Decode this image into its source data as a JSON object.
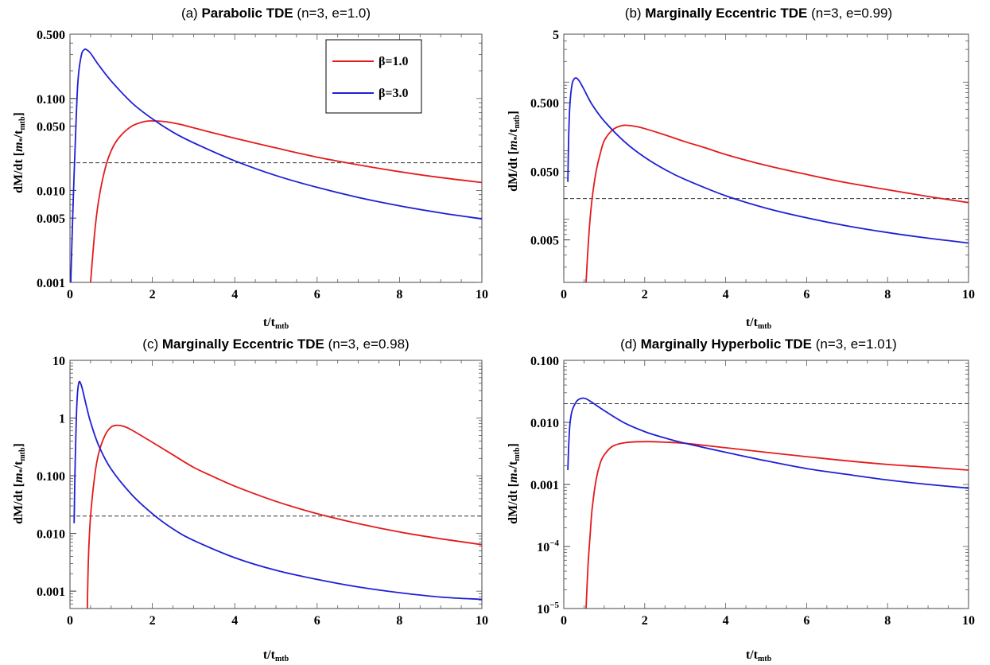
{
  "figure": {
    "legend": {
      "placement": "top-right of panel (a)",
      "entries": [
        {
          "label": "β=1.0",
          "color": "#e41a1c"
        },
        {
          "label": "β=3.0",
          "color": "#1f1fd6"
        }
      ]
    }
  },
  "chart_data": [
    {
      "type": "line",
      "title": "(a) Parabolic TDE (n=3, e=1.0)",
      "title_bold": "Parabolic TDE",
      "title_prefix": "(a) ",
      "title_suffix": " (n=3, e=1.0)",
      "xlabel": "t/t",
      "xlabel_sub": "mtb",
      "ylabel": "dM/dt [",
      "ylabel_unit": "m",
      "ylabel_unit_sub": "*",
      "ylabel_den": "/t",
      "ylabel_den_sub": "mtb",
      "ylabel_close": "]",
      "xlim": [
        0,
        10
      ],
      "ylim": [
        0.001,
        0.5
      ],
      "yscale": "log",
      "xticks": [
        0,
        2,
        4,
        6,
        8,
        10
      ],
      "xtick_labels": [
        "0",
        "2",
        "4",
        "6",
        "8",
        "10"
      ],
      "yticks": [
        0.001,
        0.005,
        0.01,
        0.05,
        0.1,
        0.5
      ],
      "ytick_labels": [
        "0.001",
        "0.005",
        "0.010",
        "0.050",
        "0.100",
        "0.500"
      ],
      "hline": 0.02,
      "series": [
        {
          "name": "β=1.0",
          "color": "#e41a1c",
          "x": [
            0.5,
            0.6,
            0.7,
            0.85,
            1.0,
            1.2,
            1.5,
            1.8,
            2.0,
            2.3,
            2.7,
            3.0,
            3.5,
            4.0,
            5.0,
            6.0,
            7.0,
            8.0,
            9.0,
            10.0
          ],
          "y": [
            0.001,
            0.0035,
            0.008,
            0.017,
            0.027,
            0.038,
            0.05,
            0.056,
            0.057,
            0.056,
            0.052,
            0.048,
            0.042,
            0.037,
            0.029,
            0.023,
            0.019,
            0.016,
            0.0138,
            0.0122
          ]
        },
        {
          "name": "β=3.0",
          "color": "#1f1fd6",
          "x": [
            0.02,
            0.05,
            0.1,
            0.15,
            0.2,
            0.28,
            0.35,
            0.4,
            0.5,
            0.7,
            1.0,
            1.5,
            2.0,
            2.5,
            3.0,
            4.0,
            5.0,
            6.0,
            7.0,
            8.0,
            9.0,
            10.0
          ],
          "y": [
            0.001,
            0.003,
            0.015,
            0.06,
            0.17,
            0.3,
            0.34,
            0.34,
            0.31,
            0.23,
            0.155,
            0.09,
            0.06,
            0.043,
            0.033,
            0.021,
            0.0145,
            0.0108,
            0.0084,
            0.0068,
            0.0057,
            0.0049
          ]
        }
      ]
    },
    {
      "type": "line",
      "title": "(b) Marginally Eccentric TDE (n=3, e=0.99)",
      "title_bold": "Marginally Eccentric TDE",
      "title_prefix": "(b) ",
      "title_suffix": " (n=3, e=0.99)",
      "xlabel": "t/t",
      "xlabel_sub": "mtb",
      "ylabel": "dM/dt [",
      "ylabel_unit": "m",
      "ylabel_unit_sub": "*",
      "ylabel_den": "/t",
      "ylabel_den_sub": "mtb",
      "ylabel_close": "]",
      "xlim": [
        0,
        10
      ],
      "ylim": [
        0.0012,
        5
      ],
      "yscale": "log",
      "xticks": [
        0,
        2,
        4,
        6,
        8,
        10
      ],
      "xtick_labels": [
        "0",
        "2",
        "4",
        "6",
        "8",
        "10"
      ],
      "yticks": [
        0.005,
        0.05,
        0.5,
        5
      ],
      "ytick_labels": [
        "0.005",
        "0.050",
        "0.500",
        "5"
      ],
      "hline": 0.02,
      "series": [
        {
          "name": "β=1.0",
          "color": "#e41a1c",
          "x": [
            0.55,
            0.62,
            0.7,
            0.8,
            0.9,
            1.0,
            1.2,
            1.4,
            1.55,
            1.8,
            2.0,
            2.5,
            3.0,
            3.5,
            4.0,
            5.0,
            6.0,
            7.0,
            8.0,
            9.0,
            10.0
          ],
          "y": [
            0.0012,
            0.006,
            0.02,
            0.05,
            0.09,
            0.14,
            0.2,
            0.23,
            0.235,
            0.225,
            0.21,
            0.17,
            0.135,
            0.11,
            0.088,
            0.061,
            0.045,
            0.034,
            0.027,
            0.0215,
            0.0175
          ]
        },
        {
          "name": "β=3.0",
          "color": "#1f1fd6",
          "x": [
            0.1,
            0.12,
            0.15,
            0.2,
            0.25,
            0.3,
            0.35,
            0.4,
            0.5,
            0.7,
            1.0,
            1.5,
            2.0,
            2.5,
            3.0,
            4.0,
            5.0,
            6.0,
            7.0,
            8.0,
            9.0,
            10.0
          ],
          "y": [
            0.035,
            0.15,
            0.45,
            0.9,
            1.1,
            1.15,
            1.1,
            1.0,
            0.78,
            0.47,
            0.27,
            0.135,
            0.08,
            0.053,
            0.038,
            0.022,
            0.0145,
            0.0105,
            0.008,
            0.0064,
            0.0053,
            0.0045
          ]
        }
      ]
    },
    {
      "type": "line",
      "title": "(c) Marginally Eccentric TDE (n=3, e=0.98)",
      "title_bold": "Marginally Eccentric TDE",
      "title_prefix": "(c) ",
      "title_suffix": " (n=3, e=0.98)",
      "xlabel": "t/t",
      "xlabel_sub": "mtb",
      "ylabel": "dM/dt [",
      "ylabel_unit": "m",
      "ylabel_unit_sub": "*",
      "ylabel_den": "/t",
      "ylabel_den_sub": "mtb",
      "ylabel_close": "]",
      "xlim": [
        0,
        10
      ],
      "ylim": [
        0.0005,
        10
      ],
      "yscale": "log",
      "xticks": [
        0,
        2,
        4,
        6,
        8,
        10
      ],
      "xtick_labels": [
        "0",
        "2",
        "4",
        "6",
        "8",
        "10"
      ],
      "yticks": [
        0.001,
        0.01,
        0.1,
        1,
        10
      ],
      "ytick_labels": [
        "0.001",
        "0.010",
        "0.100",
        "1",
        "10"
      ],
      "hline": 0.02,
      "series": [
        {
          "name": "β=1.0",
          "color": "#e41a1c",
          "x": [
            0.42,
            0.45,
            0.5,
            0.6,
            0.7,
            0.85,
            1.0,
            1.15,
            1.3,
            1.5,
            2.0,
            2.5,
            3.0,
            3.5,
            4.0,
            5.0,
            6.0,
            7.0,
            8.0,
            9.0,
            10.0
          ],
          "y": [
            0.0005,
            0.004,
            0.02,
            0.1,
            0.25,
            0.5,
            0.7,
            0.75,
            0.72,
            0.62,
            0.38,
            0.23,
            0.14,
            0.095,
            0.066,
            0.036,
            0.022,
            0.0148,
            0.0106,
            0.0081,
            0.0064
          ]
        },
        {
          "name": "β=3.0",
          "color": "#1f1fd6",
          "x": [
            0.1,
            0.12,
            0.15,
            0.18,
            0.22,
            0.27,
            0.32,
            0.4,
            0.5,
            0.7,
            1.0,
            1.5,
            2.0,
            2.5,
            3.0,
            4.0,
            5.0,
            6.0,
            7.0,
            8.0,
            9.0,
            10.0
          ],
          "y": [
            0.015,
            0.1,
            0.8,
            2.5,
            4.2,
            3.8,
            2.8,
            1.6,
            0.85,
            0.33,
            0.13,
            0.047,
            0.022,
            0.012,
            0.0076,
            0.0038,
            0.0023,
            0.0016,
            0.00118,
            0.00094,
            0.00079,
            0.00072
          ]
        }
      ]
    },
    {
      "type": "line",
      "title": "(d) Marginally Hyperbolic TDE (n=3, e=1.01)",
      "title_bold": "Marginally Hyperbolic TDE",
      "title_prefix": "(d) ",
      "title_suffix": " (n=3, e=1.01)",
      "xlabel": "t/t",
      "xlabel_sub": "mtb",
      "ylabel": "dM/dt [",
      "ylabel_unit": "m",
      "ylabel_unit_sub": "*",
      "ylabel_den": "/t",
      "ylabel_den_sub": "mtb",
      "ylabel_close": "]",
      "xlim": [
        0,
        10
      ],
      "ylim": [
        1e-05,
        0.1
      ],
      "yscale": "log",
      "xticks": [
        0,
        2,
        4,
        6,
        8,
        10
      ],
      "xtick_labels": [
        "0",
        "2",
        "4",
        "6",
        "8",
        "10"
      ],
      "yticks": [
        1e-05,
        0.0001,
        0.001,
        0.01,
        0.1
      ],
      "ytick_labels": [
        "10^−5",
        "10^−4",
        "0.001",
        "0.010",
        "0.100"
      ],
      "hline": 0.02,
      "series": [
        {
          "name": "β=1.0",
          "color": "#e41a1c",
          "x": [
            0.55,
            0.6,
            0.65,
            0.7,
            0.8,
            0.9,
            1.0,
            1.2,
            1.5,
            2.0,
            2.5,
            3.0,
            4.0,
            5.0,
            6.0,
            7.0,
            8.0,
            9.0,
            10.0
          ],
          "y": [
            1e-05,
            5e-05,
            0.00015,
            0.0004,
            0.0012,
            0.0022,
            0.003,
            0.0041,
            0.0047,
            0.0049,
            0.0048,
            0.0046,
            0.0039,
            0.0033,
            0.0028,
            0.0024,
            0.0021,
            0.0019,
            0.0017
          ]
        },
        {
          "name": "β=3.0",
          "color": "#1f1fd6",
          "x": [
            0.1,
            0.12,
            0.15,
            0.2,
            0.28,
            0.35,
            0.45,
            0.55,
            0.7,
            1.0,
            1.5,
            2.0,
            2.5,
            3.0,
            4.0,
            5.0,
            6.0,
            7.0,
            8.0,
            9.0,
            10.0
          ],
          "y": [
            0.0017,
            0.004,
            0.009,
            0.015,
            0.02,
            0.023,
            0.0245,
            0.024,
            0.021,
            0.0155,
            0.0098,
            0.0071,
            0.0056,
            0.0046,
            0.0033,
            0.0024,
            0.0018,
            0.00145,
            0.00118,
            0.001,
            0.00087
          ]
        }
      ]
    }
  ]
}
